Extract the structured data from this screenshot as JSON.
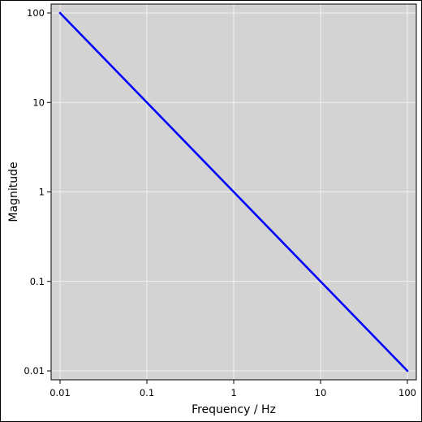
{
  "chart_data": {
    "type": "line",
    "xlabel": "Frequency / Hz",
    "ylabel": "Magnitude",
    "x_scale": "log",
    "y_scale": "log",
    "xlim": [
      0.01,
      100
    ],
    "ylim": [
      0.01,
      100
    ],
    "x_ticks": [
      {
        "value": 0.01,
        "label": "0.01"
      },
      {
        "value": 0.1,
        "label": "0.1"
      },
      {
        "value": 1,
        "label": "1"
      },
      {
        "value": 10,
        "label": "10"
      },
      {
        "value": 100,
        "label": "100"
      }
    ],
    "y_ticks": [
      {
        "value": 0.01,
        "label": "0.01"
      },
      {
        "value": 0.1,
        "label": "0.1"
      },
      {
        "value": 1,
        "label": "1"
      },
      {
        "value": 10,
        "label": "10"
      },
      {
        "value": 100,
        "label": "100"
      }
    ],
    "grid": true,
    "series": [
      {
        "x": [
          0.01,
          0.1,
          1,
          10,
          100
        ],
        "y": [
          100,
          10,
          1,
          0.1,
          0.01
        ],
        "color": "#0000ff"
      }
    ]
  },
  "colors": {
    "plot_background": "#d3d3d3",
    "grid": "#f2f2f2",
    "line": "#0000ff"
  }
}
